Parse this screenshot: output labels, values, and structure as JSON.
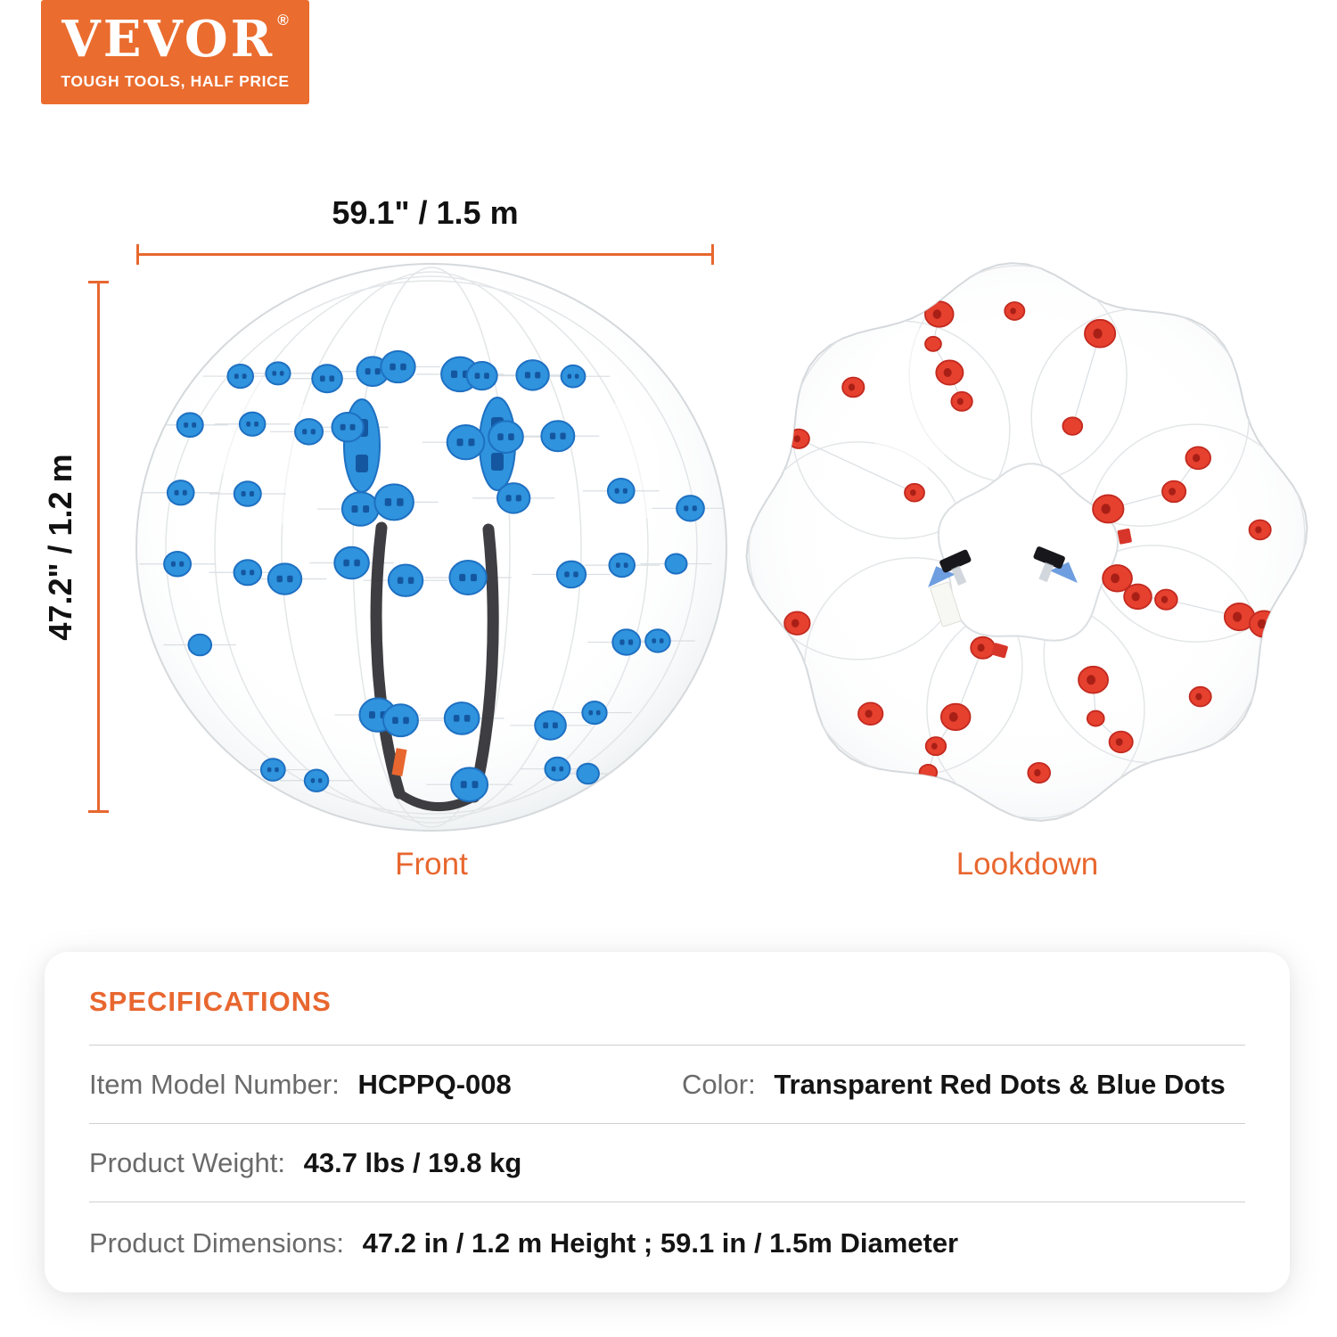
{
  "brand": {
    "logo_text": "VEVOR",
    "logo_reg": "®",
    "tagline": "TOUGH TOOLS, HALF PRICE"
  },
  "colors": {
    "accent": "#E8672F",
    "logo_bg": "#EA6C2E",
    "dim_text": "#111111",
    "label_gray": "#6A6A6A",
    "value_black": "#141414",
    "divider": "#CFCFCF",
    "blue_dot": "#2F93DD",
    "blue_dot_dark": "#1E70C2",
    "blue_slot": "#1457A0",
    "red_dot": "#E6402F",
    "red_dot_dark": "#C22A1F",
    "red_slot": "#A81F16",
    "string_gray": "#D9DEE2",
    "ball_outline": "#D5D9DC",
    "seam_gray": "#E3E6E8",
    "strap_black": "#2E2E33"
  },
  "dimensions": {
    "width_label": "59.1\" / 1.5 m",
    "height_label": "47.2\" / 1.2 m"
  },
  "views": {
    "front_label": "Front",
    "lookdown_label": "Lookdown"
  },
  "specs": {
    "title": "SPECIFICATIONS",
    "rows": [
      [
        {
          "label": "Item Model Number:",
          "value": "HCPPQ-008"
        },
        {
          "label": "Color:",
          "value": "Transparent Red Dots & Blue Dots"
        }
      ],
      [
        {
          "label": "Product Weight:",
          "value": "43.7 lbs / 19.8 kg"
        }
      ],
      [
        {
          "label": "Product Dimensions:",
          "value": "47.2 in / 1.2 m Height ; 59.1 in / 1.5m Diameter"
        }
      ]
    ]
  }
}
